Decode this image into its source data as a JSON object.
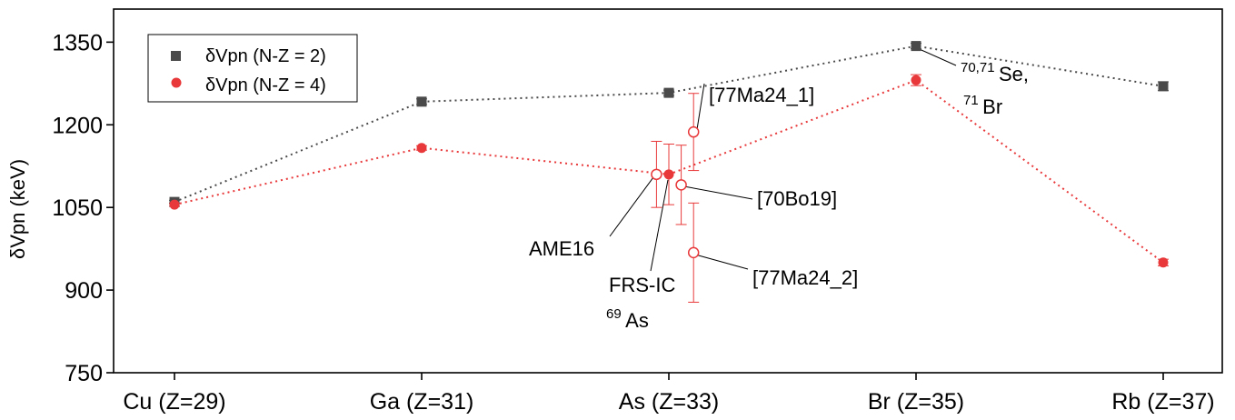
{
  "chart_data": {
    "type": "scatter",
    "categories": [
      "Cu (Z=29)",
      "Ga (Z=31)",
      "As (Z=33)",
      "Br (Z=35)",
      "Rb (Z=37)"
    ],
    "ylabel": "δVpn (keV)",
    "ylim": [
      750,
      1410
    ],
    "yticks": [
      750,
      900,
      1050,
      1200,
      1350
    ],
    "grid": false,
    "legend_position": "top-left",
    "series": [
      {
        "name": "δVpn (N-Z = 2)",
        "marker": "square",
        "color": "#4a4a4a",
        "line": "dotted",
        "values": [
          1060,
          1242,
          1258,
          1343,
          1270
        ],
        "errors": [
          3,
          5,
          5,
          5,
          8
        ]
      },
      {
        "name": "δVpn (N-Z = 4)",
        "marker": "circle",
        "color": "#e8383a",
        "line": "dotted",
        "values": [
          1055,
          1158,
          1110,
          1281,
          950
        ],
        "errors": [
          3,
          4,
          55,
          10,
          6
        ]
      }
    ],
    "extra_points": [
      {
        "label": "AME16",
        "x_offset": -0.05,
        "value": 1110,
        "error": 60
      },
      {
        "label": "[70Bo19]",
        "x_offset": 0.05,
        "value": 1091,
        "error": 72
      },
      {
        "label": "[77Ma24_1]",
        "x_offset": 0.1,
        "value": 1187,
        "error": 70
      },
      {
        "label": "[77Ma24_2]",
        "x_offset": 0.1,
        "value": 968,
        "error": 90
      }
    ],
    "annotations": {
      "frs_ic": "FRS-IC",
      "as69_sup": "69",
      "as69_text": "As",
      "se_sup": "70,71",
      "se_text": "Se,",
      "br_sup": "71",
      "br_text": "Br"
    }
  }
}
